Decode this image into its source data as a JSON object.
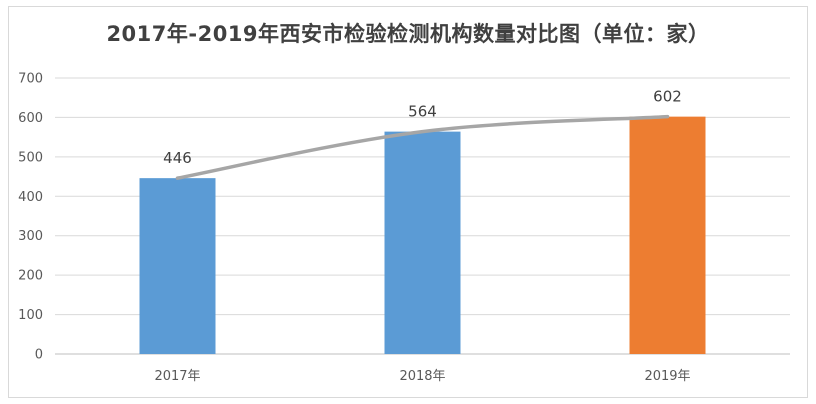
{
  "chart_data": {
    "type": "bar",
    "title": "2017年-2019年西安市检验检测机构数量对比图（单位：家）",
    "categories": [
      "2017年",
      "2018年",
      "2019年"
    ],
    "values": [
      446,
      564,
      602
    ],
    "bar_colors": [
      "#5b9bd5",
      "#5b9bd5",
      "#ed7d31"
    ],
    "trend_line": {
      "values": [
        446,
        564,
        602
      ],
      "color": "#a6a6a6",
      "smooth": true
    },
    "y_ticks": [
      0,
      100,
      200,
      300,
      400,
      500,
      600,
      700
    ],
    "ylim": [
      0,
      700
    ],
    "grid": true,
    "data_labels": true,
    "legend": "none",
    "gridline_color": "#d9d9d9"
  }
}
